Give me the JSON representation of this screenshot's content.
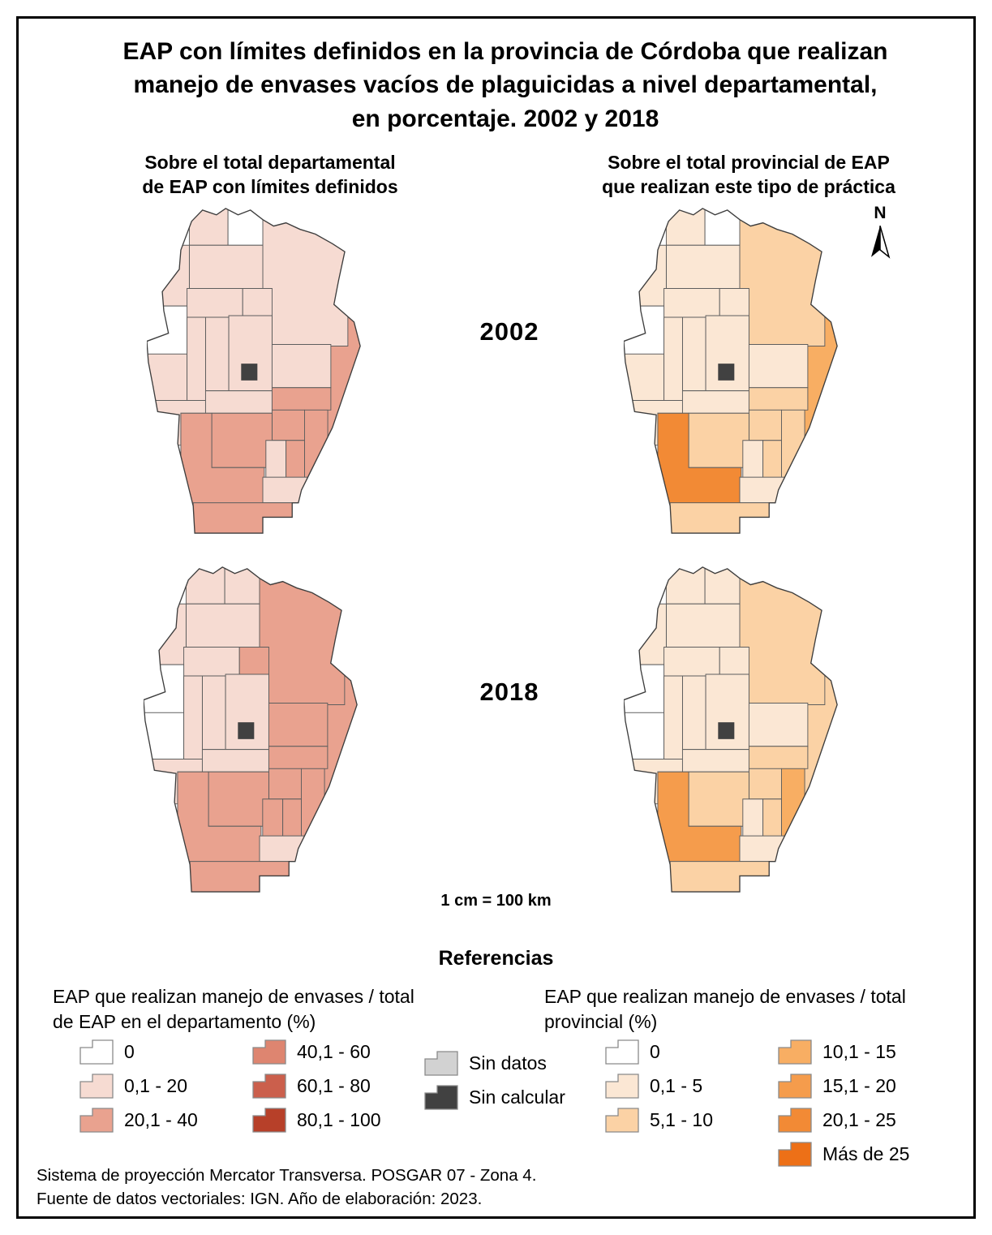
{
  "title": "EAP con límites definidos en la provincia de Córdoba que realizan\nmanejo de envases vacíos de plaguicidas a nivel departamental,\nen porcentaje. 2002 y 2018",
  "columns": {
    "left_header": "Sobre el total departamental\nde EAP con límites definidos",
    "right_header": "Sobre el total provincial de EAP\nque realizan este tipo de práctica"
  },
  "year_labels": {
    "top_row": "2002",
    "bottom_row": "2018"
  },
  "north_arrow_label": "N",
  "scale_text": "1 cm = 100 km",
  "legend": {
    "heading": "Referencias",
    "left": {
      "title": "EAP que realizan manejo de envases / total\nde EAP en el departamento (%)",
      "col1": [
        {
          "label": "0",
          "color": "#FFFFFF"
        },
        {
          "label": "0,1 - 20",
          "color": "#F6DBD2"
        },
        {
          "label": "20,1 - 40",
          "color": "#E9A28F"
        }
      ],
      "col2": [
        {
          "label": "40,1 - 60",
          "color": "#DE8570"
        },
        {
          "label": "60,1 - 80",
          "color": "#CB5F4C"
        },
        {
          "label": "80,1 - 100",
          "color": "#B74029"
        }
      ]
    },
    "middle": [
      {
        "label": "Sin datos",
        "color": "#D2D2D2"
      },
      {
        "label": "Sin calcular",
        "color": "#414141"
      }
    ],
    "right": {
      "title": "EAP que realizan manejo de envases / total\nprovincial (%)",
      "col1": [
        {
          "label": "0",
          "color": "#FFFFFF"
        },
        {
          "label": "0,1 - 5",
          "color": "#FBE7D4"
        },
        {
          "label": "5,1 - 10",
          "color": "#FBD2A5"
        }
      ],
      "col2": [
        {
          "label": "10,1 - 15",
          "color": "#F8AE63"
        },
        {
          "label": "15,1 - 20",
          "color": "#F59C4C"
        },
        {
          "label": "20,1 - 25",
          "color": "#F28A35"
        },
        {
          "label": "Más de 25",
          "color": "#ED7017"
        }
      ]
    }
  },
  "source_lines": "Sistema de proyección Mercator Transversa. POSGAR 07 - Zona 4.\nFuente de datos vectoriales: IGN. Año de elaboración: 2023.",
  "chart_data": {
    "type": "choropleth",
    "region": "Provincia de Córdoba, departamentos",
    "scales": {
      "departamental": {
        "0": "#FFFFFF",
        "0,1 - 20": "#F6DBD2",
        "20,1 - 40": "#E9A28F",
        "40,1 - 60": "#DE8570",
        "60,1 - 80": "#CB5F4C",
        "80,1 - 100": "#B74029"
      },
      "provincial": {
        "0": "#FFFFFF",
        "0,1 - 5": "#FBE7D4",
        "5,1 - 10": "#FBD2A5",
        "10,1 - 15": "#F8AE63",
        "15,1 - 20": "#F59C4C",
        "20,1 - 25": "#F28A35",
        "Más de 25": "#ED7017"
      },
      "special": {
        "Sin datos": "#D2D2D2",
        "Sin calcular": "#414141"
      }
    },
    "maps": [
      {
        "id": "map-2002-departamental",
        "year": "2002",
        "scale": "departamental",
        "classes": {
          "sobremonte": "0,1 - 20",
          "rio_seco": "0",
          "san_justo": "0,1 - 20",
          "tulumba": "0,1 - 20",
          "cruz_del_eje": "0,1 - 20",
          "ischilin": "0,1 - 20",
          "totoral": "0,1 - 20",
          "minas": "0",
          "punilla": "0,1 - 20",
          "colon": "0,1 - 20",
          "rio_primero": "0,1 - 20",
          "capital": "Sin calcular",
          "pocho": "0,1 - 20",
          "san_alberto": "0,1 - 20",
          "san_javier": "0,1 - 20",
          "santa_maria": "0,1 - 20",
          "rio_segundo": "20,1 - 40",
          "tercero_arriba": "20,1 - 40",
          "union": "20,1 - 40",
          "marcos_juarez": "20,1 - 40",
          "calamuchita": "20,1 - 40",
          "juarez_celman": "0,1 - 20",
          "general_san_martin": "20,1 - 40",
          "rio_cuarto": "20,1 - 40",
          "pte_roque_saenz_pena": "0,1 - 20",
          "general_roca": "20,1 - 40"
        }
      },
      {
        "id": "map-2002-provincial",
        "year": "2002",
        "scale": "provincial",
        "classes": {
          "sobremonte": "0,1 - 5",
          "rio_seco": "0",
          "san_justo": "5,1 - 10",
          "tulumba": "0,1 - 5",
          "cruz_del_eje": "0,1 - 5",
          "ischilin": "0,1 - 5",
          "totoral": "0,1 - 5",
          "minas": "0",
          "punilla": "0,1 - 5",
          "colon": "0,1 - 5",
          "rio_primero": "0,1 - 5",
          "capital": "Sin calcular",
          "pocho": "0,1 - 5",
          "san_alberto": "0,1 - 5",
          "san_javier": "0,1 - 5",
          "santa_maria": "0,1 - 5",
          "rio_segundo": "5,1 - 10",
          "tercero_arriba": "5,1 - 10",
          "union": "5,1 - 10",
          "marcos_juarez": "10,1 - 15",
          "calamuchita": "5,1 - 10",
          "juarez_celman": "0,1 - 5",
          "general_san_martin": "5,1 - 10",
          "rio_cuarto": "20,1 - 25",
          "pte_roque_saenz_pena": "0,1 - 5",
          "general_roca": "5,1 - 10"
        }
      },
      {
        "id": "map-2018-departamental",
        "year": "2018",
        "scale": "departamental",
        "classes": {
          "sobremonte": "0,1 - 20",
          "rio_seco": "0,1 - 20",
          "san_justo": "20,1 - 40",
          "tulumba": "0,1 - 20",
          "cruz_del_eje": "0,1 - 20",
          "ischilin": "0,1 - 20",
          "totoral": "20,1 - 40",
          "minas": "0",
          "punilla": "0,1 - 20",
          "colon": "0,1 - 20",
          "rio_primero": "20,1 - 40",
          "capital": "Sin calcular",
          "pocho": "0",
          "san_alberto": "0,1 - 20",
          "san_javier": "0,1 - 20",
          "santa_maria": "0,1 - 20",
          "rio_segundo": "20,1 - 40",
          "tercero_arriba": "20,1 - 40",
          "union": "20,1 - 40",
          "marcos_juarez": "20,1 - 40",
          "calamuchita": "20,1 - 40",
          "juarez_celman": "20,1 - 40",
          "general_san_martin": "20,1 - 40",
          "rio_cuarto": "20,1 - 40",
          "pte_roque_saenz_pena": "0,1 - 20",
          "general_roca": "20,1 - 40"
        }
      },
      {
        "id": "map-2018-provincial",
        "year": "2018",
        "scale": "provincial",
        "classes": {
          "sobremonte": "0,1 - 5",
          "rio_seco": "0,1 - 5",
          "san_justo": "5,1 - 10",
          "tulumba": "0,1 - 5",
          "cruz_del_eje": "0,1 - 5",
          "ischilin": "0,1 - 5",
          "totoral": "0,1 - 5",
          "minas": "0",
          "punilla": "0,1 - 5",
          "colon": "0,1 - 5",
          "rio_primero": "0,1 - 5",
          "capital": "Sin calcular",
          "pocho": "0",
          "san_alberto": "0,1 - 5",
          "san_javier": "0,1 - 5",
          "santa_maria": "0,1 - 5",
          "rio_segundo": "5,1 - 10",
          "tercero_arriba": "5,1 - 10",
          "union": "10,1 - 15",
          "marcos_juarez": "5,1 - 10",
          "calamuchita": "5,1 - 10",
          "juarez_celman": "0,1 - 5",
          "general_san_martin": "5,1 - 10",
          "rio_cuarto": "15,1 - 20",
          "pte_roque_saenz_pena": "0,1 - 5",
          "general_roca": "5,1 - 10"
        }
      }
    ]
  }
}
